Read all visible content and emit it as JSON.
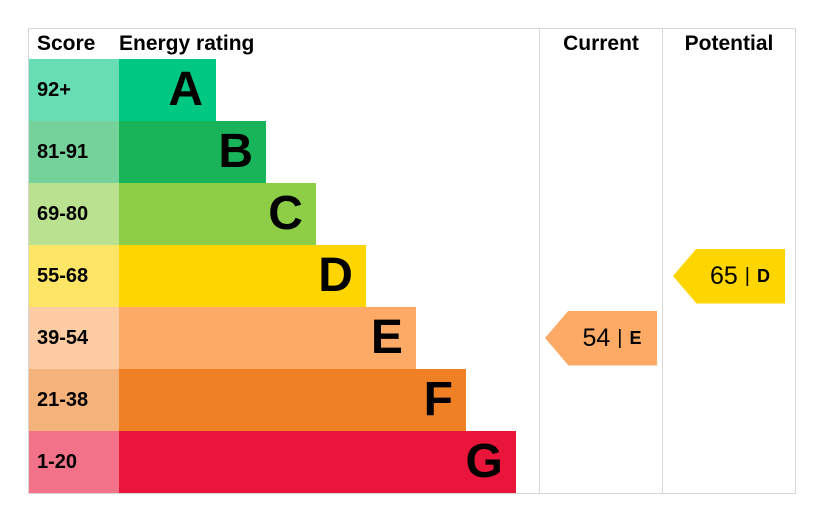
{
  "header": {
    "score_label": "Score",
    "rating_label": "Energy rating",
    "current_label": "Current",
    "potential_label": "Potential"
  },
  "bands": [
    {
      "score": "92+",
      "letter": "A",
      "color": "#00c781",
      "tint": "#66ddb3"
    },
    {
      "score": "81-91",
      "letter": "B",
      "color": "#19b459",
      "tint": "#75d29b"
    },
    {
      "score": "69-80",
      "letter": "C",
      "color": "#8dce46",
      "tint": "#bae190"
    },
    {
      "score": "55-68",
      "letter": "D",
      "color": "#ffd500",
      "tint": "#ffe566"
    },
    {
      "score": "39-54",
      "letter": "E",
      "color": "#fcaa65",
      "tint": "#fdcca2"
    },
    {
      "score": "21-38",
      "letter": "F",
      "color": "#ef8023",
      "tint": "#f5b27b"
    },
    {
      "score": "1-20",
      "letter": "G",
      "color": "#e9153b",
      "tint": "#f17289"
    }
  ],
  "current": {
    "value": "54",
    "divider": "|",
    "letter": "E",
    "color": "#fcaa65",
    "band_index": 4
  },
  "potential": {
    "value": "65",
    "divider": "|",
    "letter": "D",
    "color": "#ffd500",
    "band_index": 3
  },
  "chart_data": {
    "type": "bar",
    "title": "Energy rating",
    "categories": [
      "A",
      "B",
      "C",
      "D",
      "E",
      "F",
      "G"
    ],
    "score_ranges": [
      "92+",
      "81-91",
      "69-80",
      "55-68",
      "39-54",
      "21-38",
      "1-20"
    ],
    "colors": [
      "#00c781",
      "#19b459",
      "#8dce46",
      "#ffd500",
      "#fcaa65",
      "#ef8023",
      "#e9153b"
    ],
    "bar_relative_widths": [
      1,
      1.5,
      2,
      2.5,
      3,
      3.5,
      4
    ],
    "current": {
      "score": 54,
      "rating": "E"
    },
    "potential": {
      "score": 65,
      "rating": "D"
    },
    "legend_position": "none",
    "grid": false
  }
}
